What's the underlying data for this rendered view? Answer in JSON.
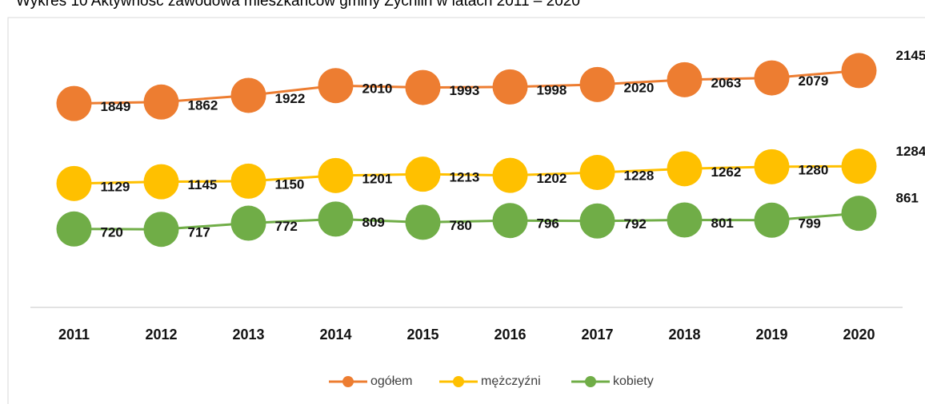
{
  "chart_data": {
    "type": "line",
    "title": "Wykres 10 Aktywność zawodowa mieszkańców gminy Żychlin w latach 2011 – 2020",
    "categories": [
      "2011",
      "2012",
      "2013",
      "2014",
      "2015",
      "2016",
      "2017",
      "2018",
      "2019",
      "2020"
    ],
    "series": [
      {
        "name": "ogółem",
        "color": "#ed7d31",
        "values": [
          1849,
          1862,
          1922,
          2010,
          1993,
          1998,
          2020,
          2063,
          2079,
          2145
        ]
      },
      {
        "name": "mężczyźni",
        "color": "#ffc000",
        "values": [
          1129,
          1145,
          1150,
          1201,
          1213,
          1202,
          1228,
          1262,
          1280,
          1284
        ]
      },
      {
        "name": "kobiety",
        "color": "#70ad47",
        "values": [
          720,
          717,
          772,
          809,
          780,
          796,
          792,
          801,
          799,
          861
        ]
      }
    ],
    "ylim": [
      0,
      2500
    ],
    "legend": "bottom"
  }
}
